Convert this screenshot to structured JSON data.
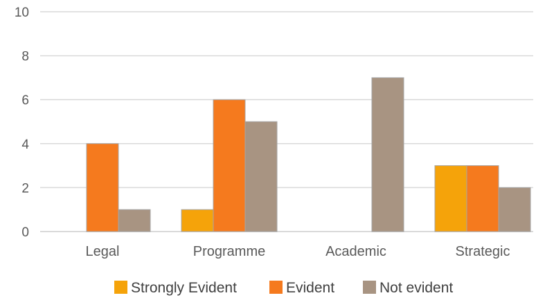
{
  "chart_data": {
    "type": "bar",
    "title": "",
    "xlabel": "",
    "ylabel": "",
    "categories": [
      "Legal",
      "Programme",
      "Academic",
      "Strategic"
    ],
    "series": [
      {
        "name": "Strongly Evident",
        "color": "#F5A30A",
        "values": [
          0,
          1,
          0,
          3
        ]
      },
      {
        "name": "Evident",
        "color": "#F57A1E",
        "values": [
          4,
          6,
          0,
          3
        ]
      },
      {
        "name": "Not evident",
        "color": "#A89482",
        "values": [
          1,
          5,
          7,
          2
        ]
      }
    ],
    "ylim": [
      0,
      10
    ],
    "yticks": [
      "0",
      "2",
      "4",
      "6",
      "8",
      "10"
    ],
    "grid": true,
    "legend_position": "bottom",
    "gridline_color": "#D9D9D9",
    "bar_edge_color": "#A6A6A6"
  }
}
